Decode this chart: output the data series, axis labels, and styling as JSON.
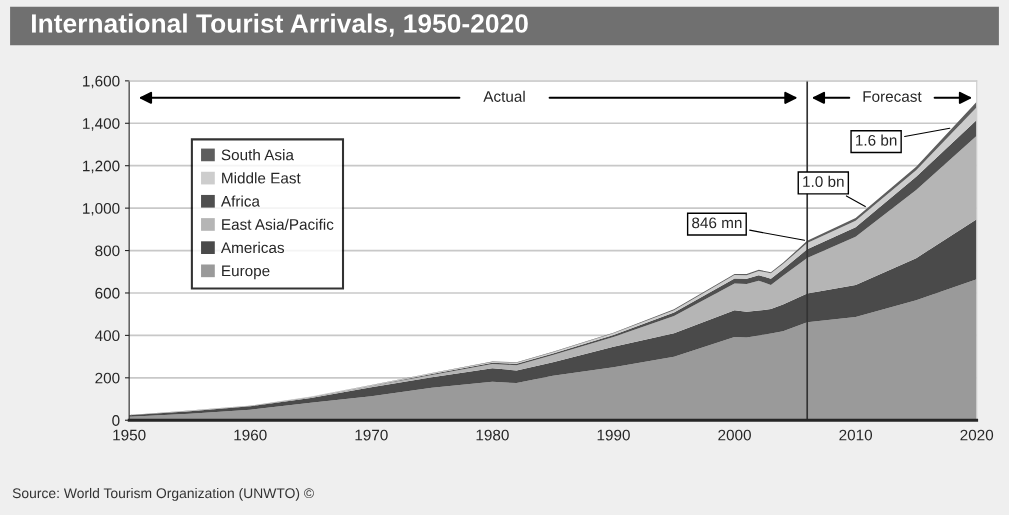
{
  "chart_data": {
    "type": "area",
    "stacked": true,
    "title": "International Tourist Arrivals, 1950-2020",
    "x": [
      1950,
      1955,
      1960,
      1965,
      1970,
      1975,
      1980,
      1982,
      1985,
      1990,
      1995,
      2000,
      2001,
      2002,
      2003,
      2004,
      2006,
      2010,
      2015,
      2020
    ],
    "series": [
      {
        "name": "Europe",
        "color": "#9a9a9a",
        "values": [
          17,
          31,
          50,
          83,
          113,
          153,
          181,
          175,
          210,
          250,
          299,
          393,
          390,
          400,
          409,
          420,
          462,
          487,
          566,
          665
        ]
      },
      {
        "name": "Americas",
        "color": "#4a4a4a",
        "values": [
          7,
          11,
          16,
          22,
          42,
          50,
          64,
          60,
          63,
          96,
          111,
          126,
          122,
          117,
          115,
          126,
          136,
          150,
          198,
          282
        ]
      },
      {
        "name": "East Asia/Pacific",
        "color": "#b5b5b5",
        "values": [
          0,
          1,
          1,
          3,
          6,
          10,
          20,
          24,
          34,
          46,
          81,
          126,
          130,
          141,
          113,
          135,
          167,
          228,
          321,
          394
        ]
      },
      {
        "name": "Africa",
        "color": "#4f4f4f",
        "values": [
          1,
          1,
          1,
          2,
          2,
          5,
          6,
          7,
          8,
          10,
          17,
          23,
          25,
          26,
          30,
          31,
          41,
          45,
          63,
          75
        ]
      },
      {
        "name": "Middle East",
        "color": "#cdcdcd",
        "values": [
          0,
          1,
          1,
          2,
          2,
          4,
          4,
          5,
          6,
          8,
          11,
          17,
          17,
          20,
          26,
          24,
          30,
          30,
          30,
          60
        ]
      },
      {
        "name": "South Asia",
        "color": "#5e5e5e",
        "values": [
          0,
          1,
          0,
          0,
          1,
          1,
          2,
          2,
          2,
          3,
          4,
          5,
          5,
          5,
          5,
          6,
          10,
          13,
          17,
          26
        ]
      }
    ],
    "xlim": [
      1950,
      2020
    ],
    "xticks": [
      1950,
      1960,
      1970,
      1980,
      1990,
      2000,
      2010,
      2020
    ],
    "ylim": [
      0,
      1600
    ],
    "yticks": [
      0,
      200,
      400,
      600,
      800,
      {
        "value": 1000,
        "label": "1,000"
      },
      {
        "value": 1200,
        "label": "1,200"
      },
      {
        "value": 1400,
        "label": "1,400"
      },
      {
        "value": 1600,
        "label": "1,600"
      }
    ],
    "grid": "y",
    "legend": "top left",
    "ref_lines": [
      {
        "axis": "x",
        "value": 2006,
        "color": "#333333"
      }
    ],
    "annotations": [
      "Actual",
      "Forecast",
      {
        "text": "846 mn",
        "x": 2006,
        "y": 846
      },
      {
        "text": "1.0 bn",
        "x": 2011,
        "y": 1001
      },
      {
        "text": "1.6 bn",
        "x": 2018,
        "y": 1379
      },
      "Source: World Tourism Organization (UNWTO) ©"
    ]
  }
}
